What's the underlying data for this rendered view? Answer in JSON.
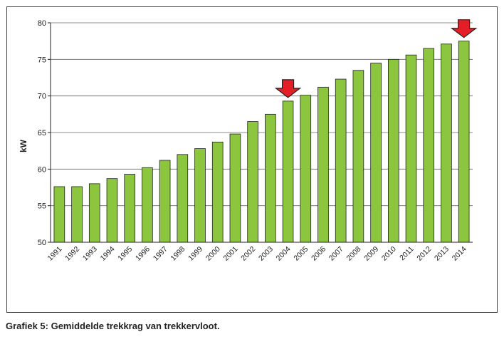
{
  "chart_data": {
    "type": "bar",
    "title": "",
    "xlabel": "",
    "ylabel": "kW",
    "ylim": [
      50,
      80
    ],
    "yticks": [
      50,
      55,
      60,
      65,
      70,
      75,
      80
    ],
    "grid": true,
    "legend": "none",
    "bar_color": "#8cc63f",
    "marker_color": "#e41e26",
    "categories": [
      "1991",
      "1992",
      "1993",
      "1994",
      "1995",
      "1996",
      "1997",
      "1998",
      "1999",
      "2000",
      "2001",
      "2002",
      "2003",
      "2004",
      "2005",
      "2006",
      "2007",
      "2008",
      "2009",
      "2010",
      "2011",
      "2012",
      "2013",
      "2014"
    ],
    "values": [
      57.6,
      57.6,
      58.0,
      58.7,
      59.3,
      60.2,
      61.2,
      62.0,
      62.8,
      63.7,
      64.8,
      66.5,
      67.5,
      69.3,
      70.1,
      71.2,
      72.3,
      73.5,
      74.5,
      75.0,
      75.6,
      76.5,
      77.1,
      77.5
    ],
    "markers": [
      "2004",
      "2014"
    ]
  },
  "caption": "Grafiek 5: Gemiddelde trekkrag van trekkervloot."
}
